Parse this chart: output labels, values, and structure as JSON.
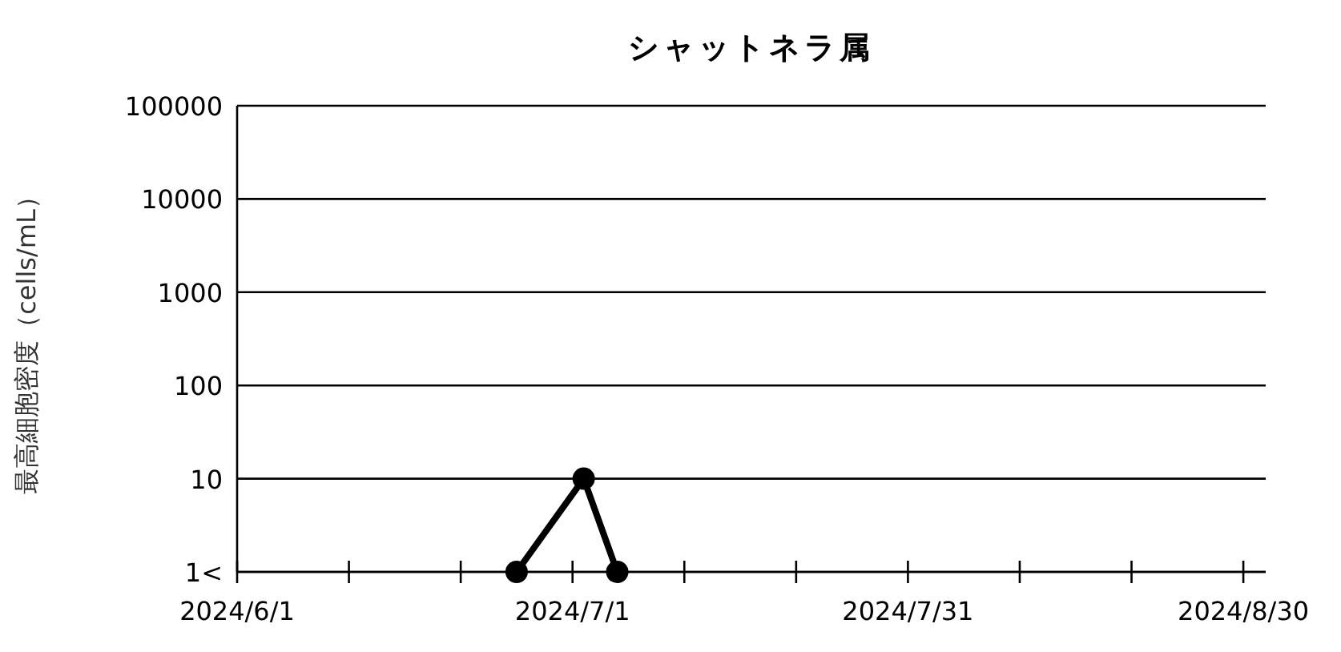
{
  "chart_data": {
    "type": "line",
    "title": "シャットネラ属",
    "ylabel": "最高細胞密度（cells/mL）",
    "x": [
      "2024-06-26",
      "2024-07-02",
      "2024-07-05"
    ],
    "series": [
      {
        "color": "#000000",
        "values": [
          1,
          10,
          1
        ]
      }
    ],
    "xlim": [
      "2024-06-01",
      "2024-09-01"
    ],
    "xticks": [
      {
        "value": "2024-06-01",
        "label": "2024/6/1"
      },
      {
        "value": "2024-06-11",
        "label": null
      },
      {
        "value": "2024-06-21",
        "label": null
      },
      {
        "value": "2024-07-01",
        "label": "2024/7/1"
      },
      {
        "value": "2024-07-11",
        "label": null
      },
      {
        "value": "2024-07-21",
        "label": null
      },
      {
        "value": "2024-07-31",
        "label": "2024/7/31"
      },
      {
        "value": "2024-08-10",
        "label": null
      },
      {
        "value": "2024-08-20",
        "label": null
      },
      {
        "value": "2024-08-30",
        "label": "2024/8/30"
      }
    ],
    "ylim": [
      1,
      100000
    ],
    "yticks": [
      {
        "value": 1,
        "label": "1<"
      },
      10,
      100,
      1000,
      10000,
      100000
    ],
    "log": true,
    "grid": "y",
    "marker": "circle",
    "line_style": "solid"
  }
}
